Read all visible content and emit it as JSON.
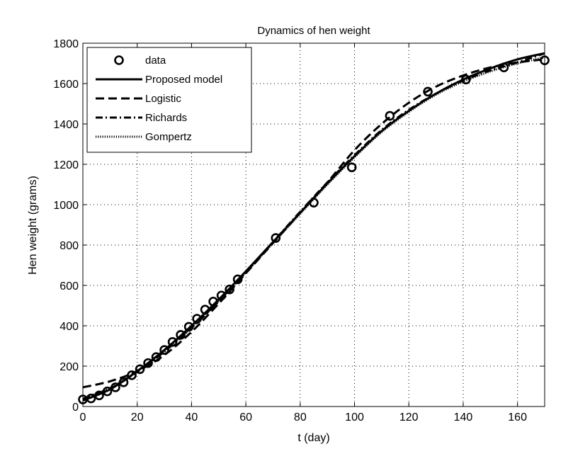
{
  "chart_data": {
    "type": "line",
    "title": "Dynamics of hen weight",
    "xlabel": "t (day)",
    "ylabel": "Hen weight (grams)",
    "xlim": [
      0,
      170
    ],
    "ylim": [
      0,
      1800
    ],
    "xticks": [
      0,
      20,
      40,
      60,
      80,
      100,
      120,
      140,
      160
    ],
    "yticks": [
      0,
      200,
      400,
      600,
      800,
      1000,
      1200,
      1400,
      1600,
      1800
    ],
    "grid": true,
    "legend_position": "top-left",
    "color": "#000000",
    "data": {
      "name": "data",
      "marker": "circle",
      "x": [
        0,
        3,
        6,
        9,
        12,
        15,
        18,
        21,
        24,
        27,
        30,
        33,
        36,
        39,
        42,
        45,
        48,
        51,
        54,
        57,
        71,
        85,
        99,
        113,
        127,
        141,
        155,
        170
      ],
      "y": [
        35,
        40,
        55,
        75,
        95,
        120,
        155,
        185,
        215,
        245,
        280,
        320,
        355,
        395,
        435,
        480,
        520,
        550,
        580,
        630,
        835,
        1010,
        1185,
        1440,
        1560,
        1620,
        1680,
        1715
      ]
    },
    "series": [
      {
        "name": "Proposed model",
        "style": "solid",
        "x": [
          0,
          10,
          20,
          30,
          40,
          50,
          60,
          70,
          80,
          90,
          100,
          110,
          120,
          130,
          140,
          150,
          160,
          170
        ],
        "y": [
          30,
          85,
          175,
          280,
          400,
          530,
          670,
          815,
          960,
          1105,
          1240,
          1365,
          1465,
          1550,
          1620,
          1675,
          1720,
          1750
        ]
      },
      {
        "name": "Logistic",
        "style": "dashed",
        "x": [
          0,
          10,
          20,
          30,
          40,
          50,
          60,
          70,
          80,
          90,
          100,
          110,
          120,
          130,
          140,
          150,
          160,
          170
        ],
        "y": [
          95,
          125,
          175,
          255,
          370,
          510,
          660,
          810,
          960,
          1110,
          1270,
          1400,
          1505,
          1585,
          1640,
          1680,
          1705,
          1720
        ]
      },
      {
        "name": "Richards",
        "style": "dashdot",
        "x": [
          0,
          10,
          20,
          30,
          40,
          50,
          60,
          70,
          80,
          90,
          100,
          110,
          120,
          130,
          140,
          150,
          160,
          170
        ],
        "y": [
          38,
          88,
          172,
          272,
          390,
          520,
          665,
          815,
          965,
          1110,
          1245,
          1370,
          1470,
          1550,
          1615,
          1665,
          1705,
          1750
        ]
      },
      {
        "name": "Gompertz",
        "style": "dotted",
        "x": [
          0,
          10,
          20,
          30,
          40,
          50,
          60,
          70,
          80,
          90,
          100,
          110,
          120,
          130,
          140,
          150,
          160,
          170
        ],
        "y": [
          40,
          92,
          175,
          275,
          392,
          522,
          665,
          810,
          955,
          1100,
          1235,
          1360,
          1460,
          1545,
          1610,
          1660,
          1700,
          1730
        ]
      }
    ]
  }
}
